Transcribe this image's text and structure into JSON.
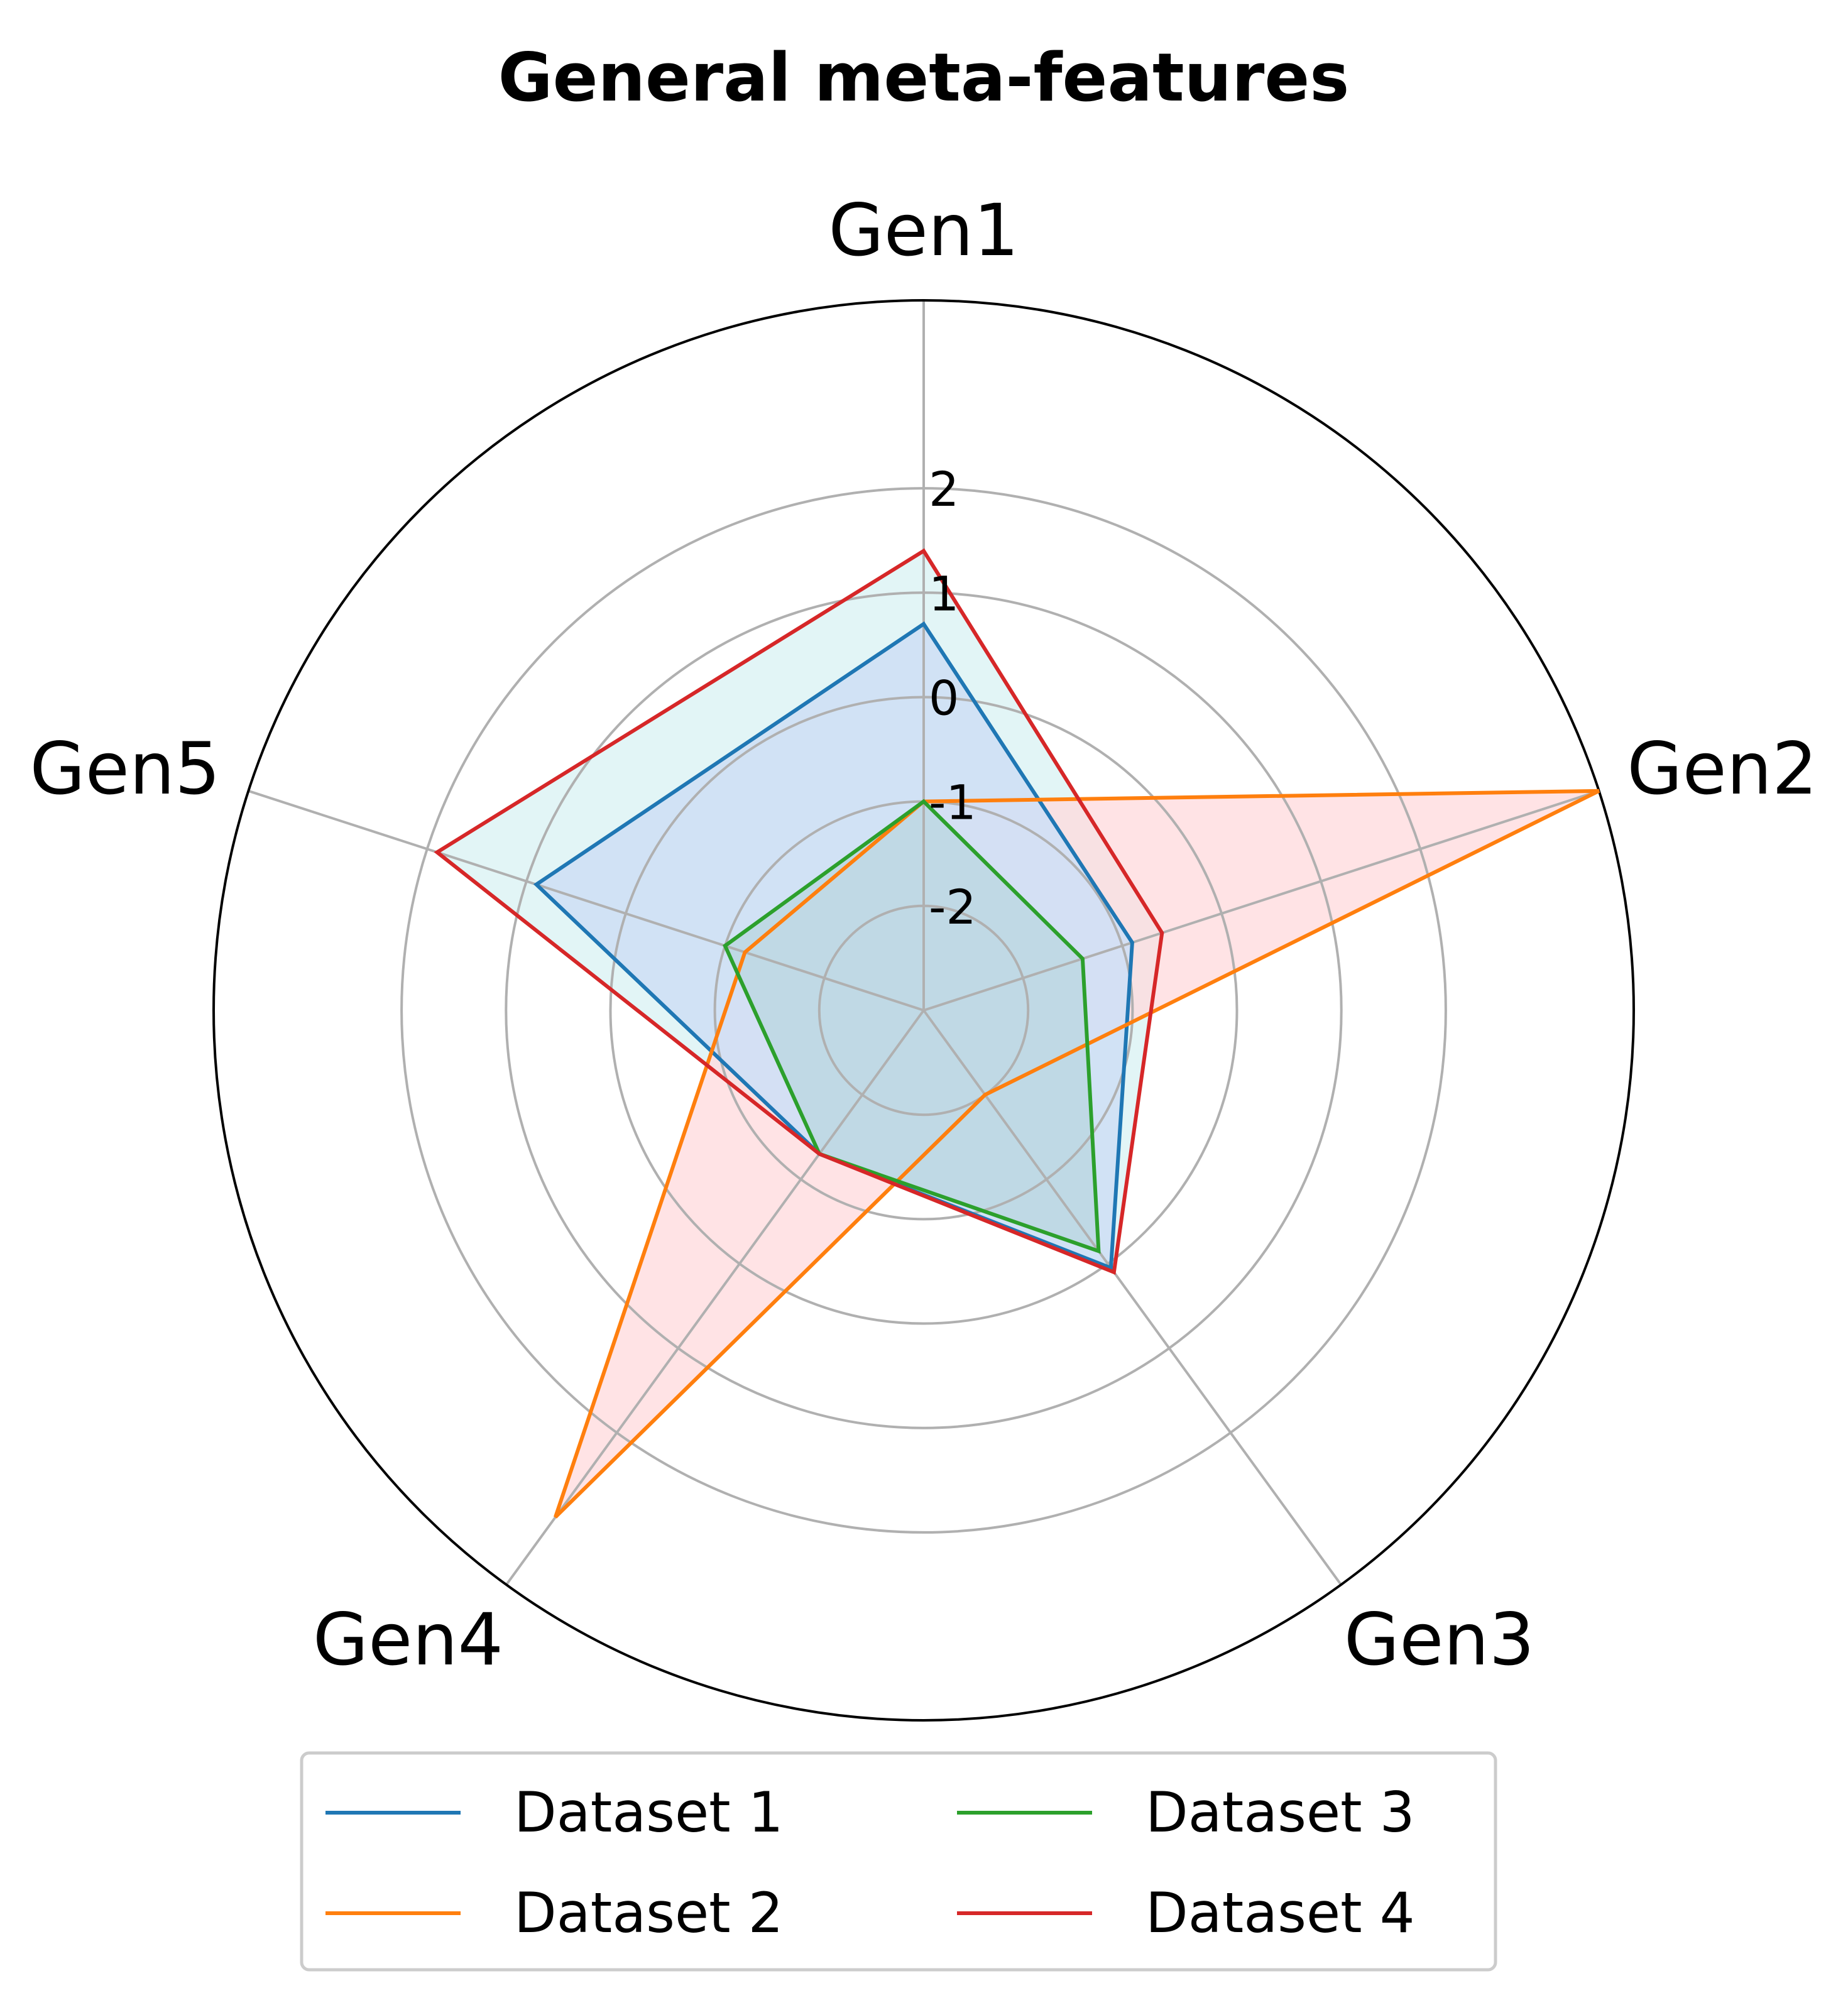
{
  "chart_data": {
    "type": "radar",
    "title": "General meta-features",
    "axes": [
      "Gen1",
      "Gen2",
      "Gen3",
      "Gen4",
      "Gen5"
    ],
    "rlim": [
      -3,
      3.8
    ],
    "rticks": [
      -2,
      -1,
      0,
      1,
      2
    ],
    "rtick_labels": [
      "-2",
      "-1",
      "0",
      "1",
      "2"
    ],
    "grid": true,
    "legend_position": "bottom-center",
    "series": [
      {
        "name": "Dataset 1",
        "color": "#1f77b4",
        "values": [
          0.7,
          -0.9,
          0.05,
          -1.3,
          0.9
        ]
      },
      {
        "name": "Dataset 2",
        "color": "#ff7f0e",
        "values": [
          -1.0,
          3.8,
          -2.0,
          3.0,
          -1.2
        ]
      },
      {
        "name": "Dataset 3",
        "color": "#2ca02c",
        "values": [
          -1.0,
          -1.4,
          -0.15,
          -1.3,
          -1.0
        ]
      },
      {
        "name": "Dataset 4",
        "color": "#d62728",
        "values": [
          1.4,
          -0.6,
          0.1,
          -1.3,
          1.9
        ]
      }
    ],
    "fills": [
      {
        "between": [
          "Dataset 4",
          "Dataset 2"
        ],
        "color": "#cfeff0"
      },
      {
        "between": [
          "Dataset 2",
          "Dataset 4"
        ],
        "color": "#ffd9dc"
      },
      {
        "between": [
          "Dataset 1"
        ],
        "color": "#cfe0f5"
      },
      {
        "between": [
          "Dataset 3"
        ],
        "color": "#b8d6de"
      }
    ]
  }
}
